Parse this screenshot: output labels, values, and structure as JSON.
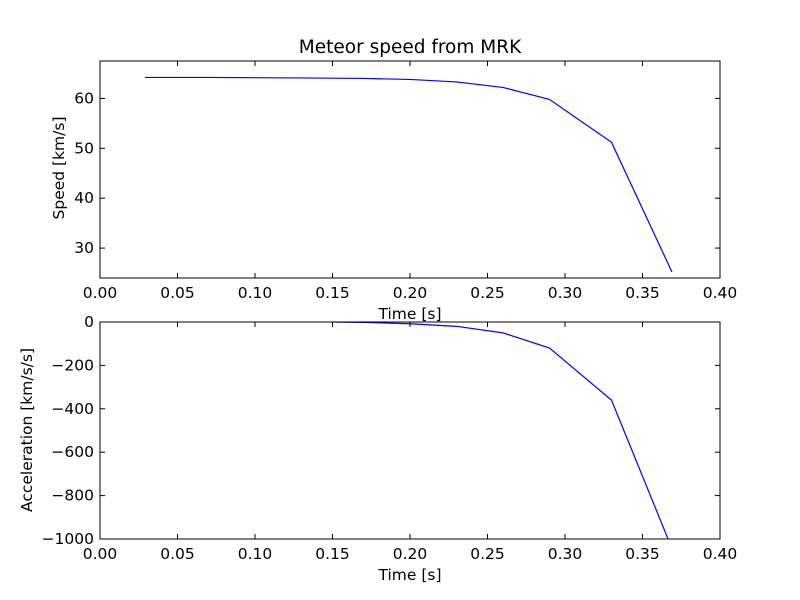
{
  "chart_data": [
    {
      "type": "line",
      "title": "Meteor speed from  MRK",
      "xlabel": "Time [s]",
      "ylabel": "Speed [km/s]",
      "xlim": [
        0.0,
        0.4
      ],
      "ylim": [
        24,
        67.5
      ],
      "xticks": [
        0.0,
        0.05,
        0.1,
        0.15,
        0.2,
        0.25,
        0.3,
        0.35,
        0.4
      ],
      "xtick_labels": [
        "0.00",
        "0.05",
        "0.10",
        "0.15",
        "0.20",
        "0.25",
        "0.30",
        "0.35",
        "0.40"
      ],
      "yticks": [
        30,
        40,
        50,
        60
      ],
      "ytick_labels": [
        "30",
        "40",
        "50",
        "60"
      ],
      "grid": false,
      "series": [
        {
          "color": "#0000ff",
          "x": [
            0.029,
            0.07,
            0.1,
            0.13,
            0.17,
            0.2,
            0.23,
            0.26,
            0.29,
            0.33,
            0.369
          ],
          "y": [
            64.2,
            64.2,
            64.15,
            64.1,
            64.0,
            63.8,
            63.3,
            62.2,
            59.8,
            51.2,
            25.2
          ]
        }
      ]
    },
    {
      "type": "line",
      "title": "",
      "xlabel": "Time [s]",
      "ylabel": "Acceleration [km/s/s]",
      "xlim": [
        0.0,
        0.4
      ],
      "ylim": [
        -1000,
        0
      ],
      "xticks": [
        0.0,
        0.05,
        0.1,
        0.15,
        0.2,
        0.25,
        0.3,
        0.35,
        0.4
      ],
      "xtick_labels": [
        "0.00",
        "0.05",
        "0.10",
        "0.15",
        "0.20",
        "0.25",
        "0.30",
        "0.35",
        "0.40"
      ],
      "yticks": [
        -1000,
        -800,
        -600,
        -400,
        -200,
        0
      ],
      "ytick_labels": [
        "−1000",
        "−800",
        "−600",
        "−400",
        "−200",
        "0"
      ],
      "grid": false,
      "series": [
        {
          "color": "#0000ff",
          "x": [
            0.15,
            0.17,
            0.2,
            0.23,
            0.26,
            0.29,
            0.33,
            0.3665
          ],
          "y": [
            0,
            -2,
            -8,
            -20,
            -50,
            -120,
            -360,
            -1000
          ]
        }
      ]
    }
  ]
}
